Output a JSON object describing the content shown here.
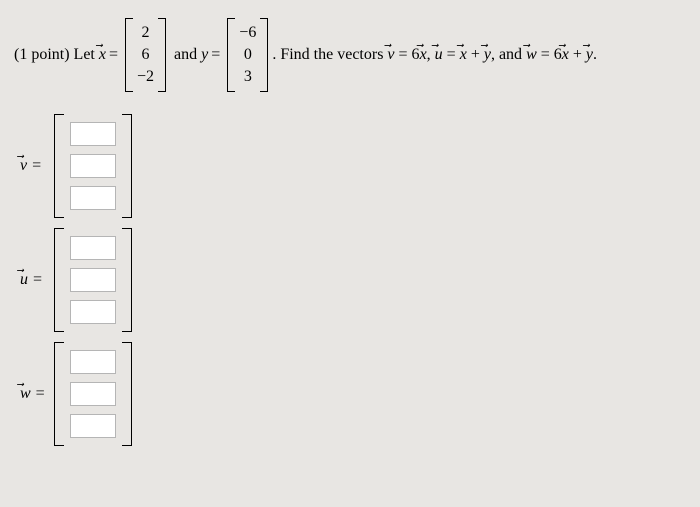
{
  "problem": {
    "points_label": "(1 point)",
    "let_label": "Let",
    "x_var": "x",
    "equals": "=",
    "and_label": "and",
    "y_var": "y",
    "find_text": ". Find the vectors",
    "v_def_lhs": "v",
    "v_def_rhs": "6x",
    "u_def_lhs": "u",
    "u_def_rhs_1": "x",
    "u_def_rhs_2": "y",
    "w_def_lhs": "w",
    "w_def_rhs_1": "6x",
    "w_def_rhs_2": "y",
    "comma": ", ",
    "and": ", and",
    "plus": " + ",
    "period": "."
  },
  "x_vector": {
    "r1": "2",
    "r2": "6",
    "r3": "−2"
  },
  "y_vector": {
    "r1": "−6",
    "r2": "0",
    "r3": "3"
  },
  "answers": {
    "v_label": "v",
    "u_label": "u",
    "w_label": "w",
    "eq": " ="
  },
  "colors": {
    "background": "#e8e6e3",
    "text": "#000000",
    "input_bg": "#ffffff",
    "input_border": "#b5b5b5"
  }
}
